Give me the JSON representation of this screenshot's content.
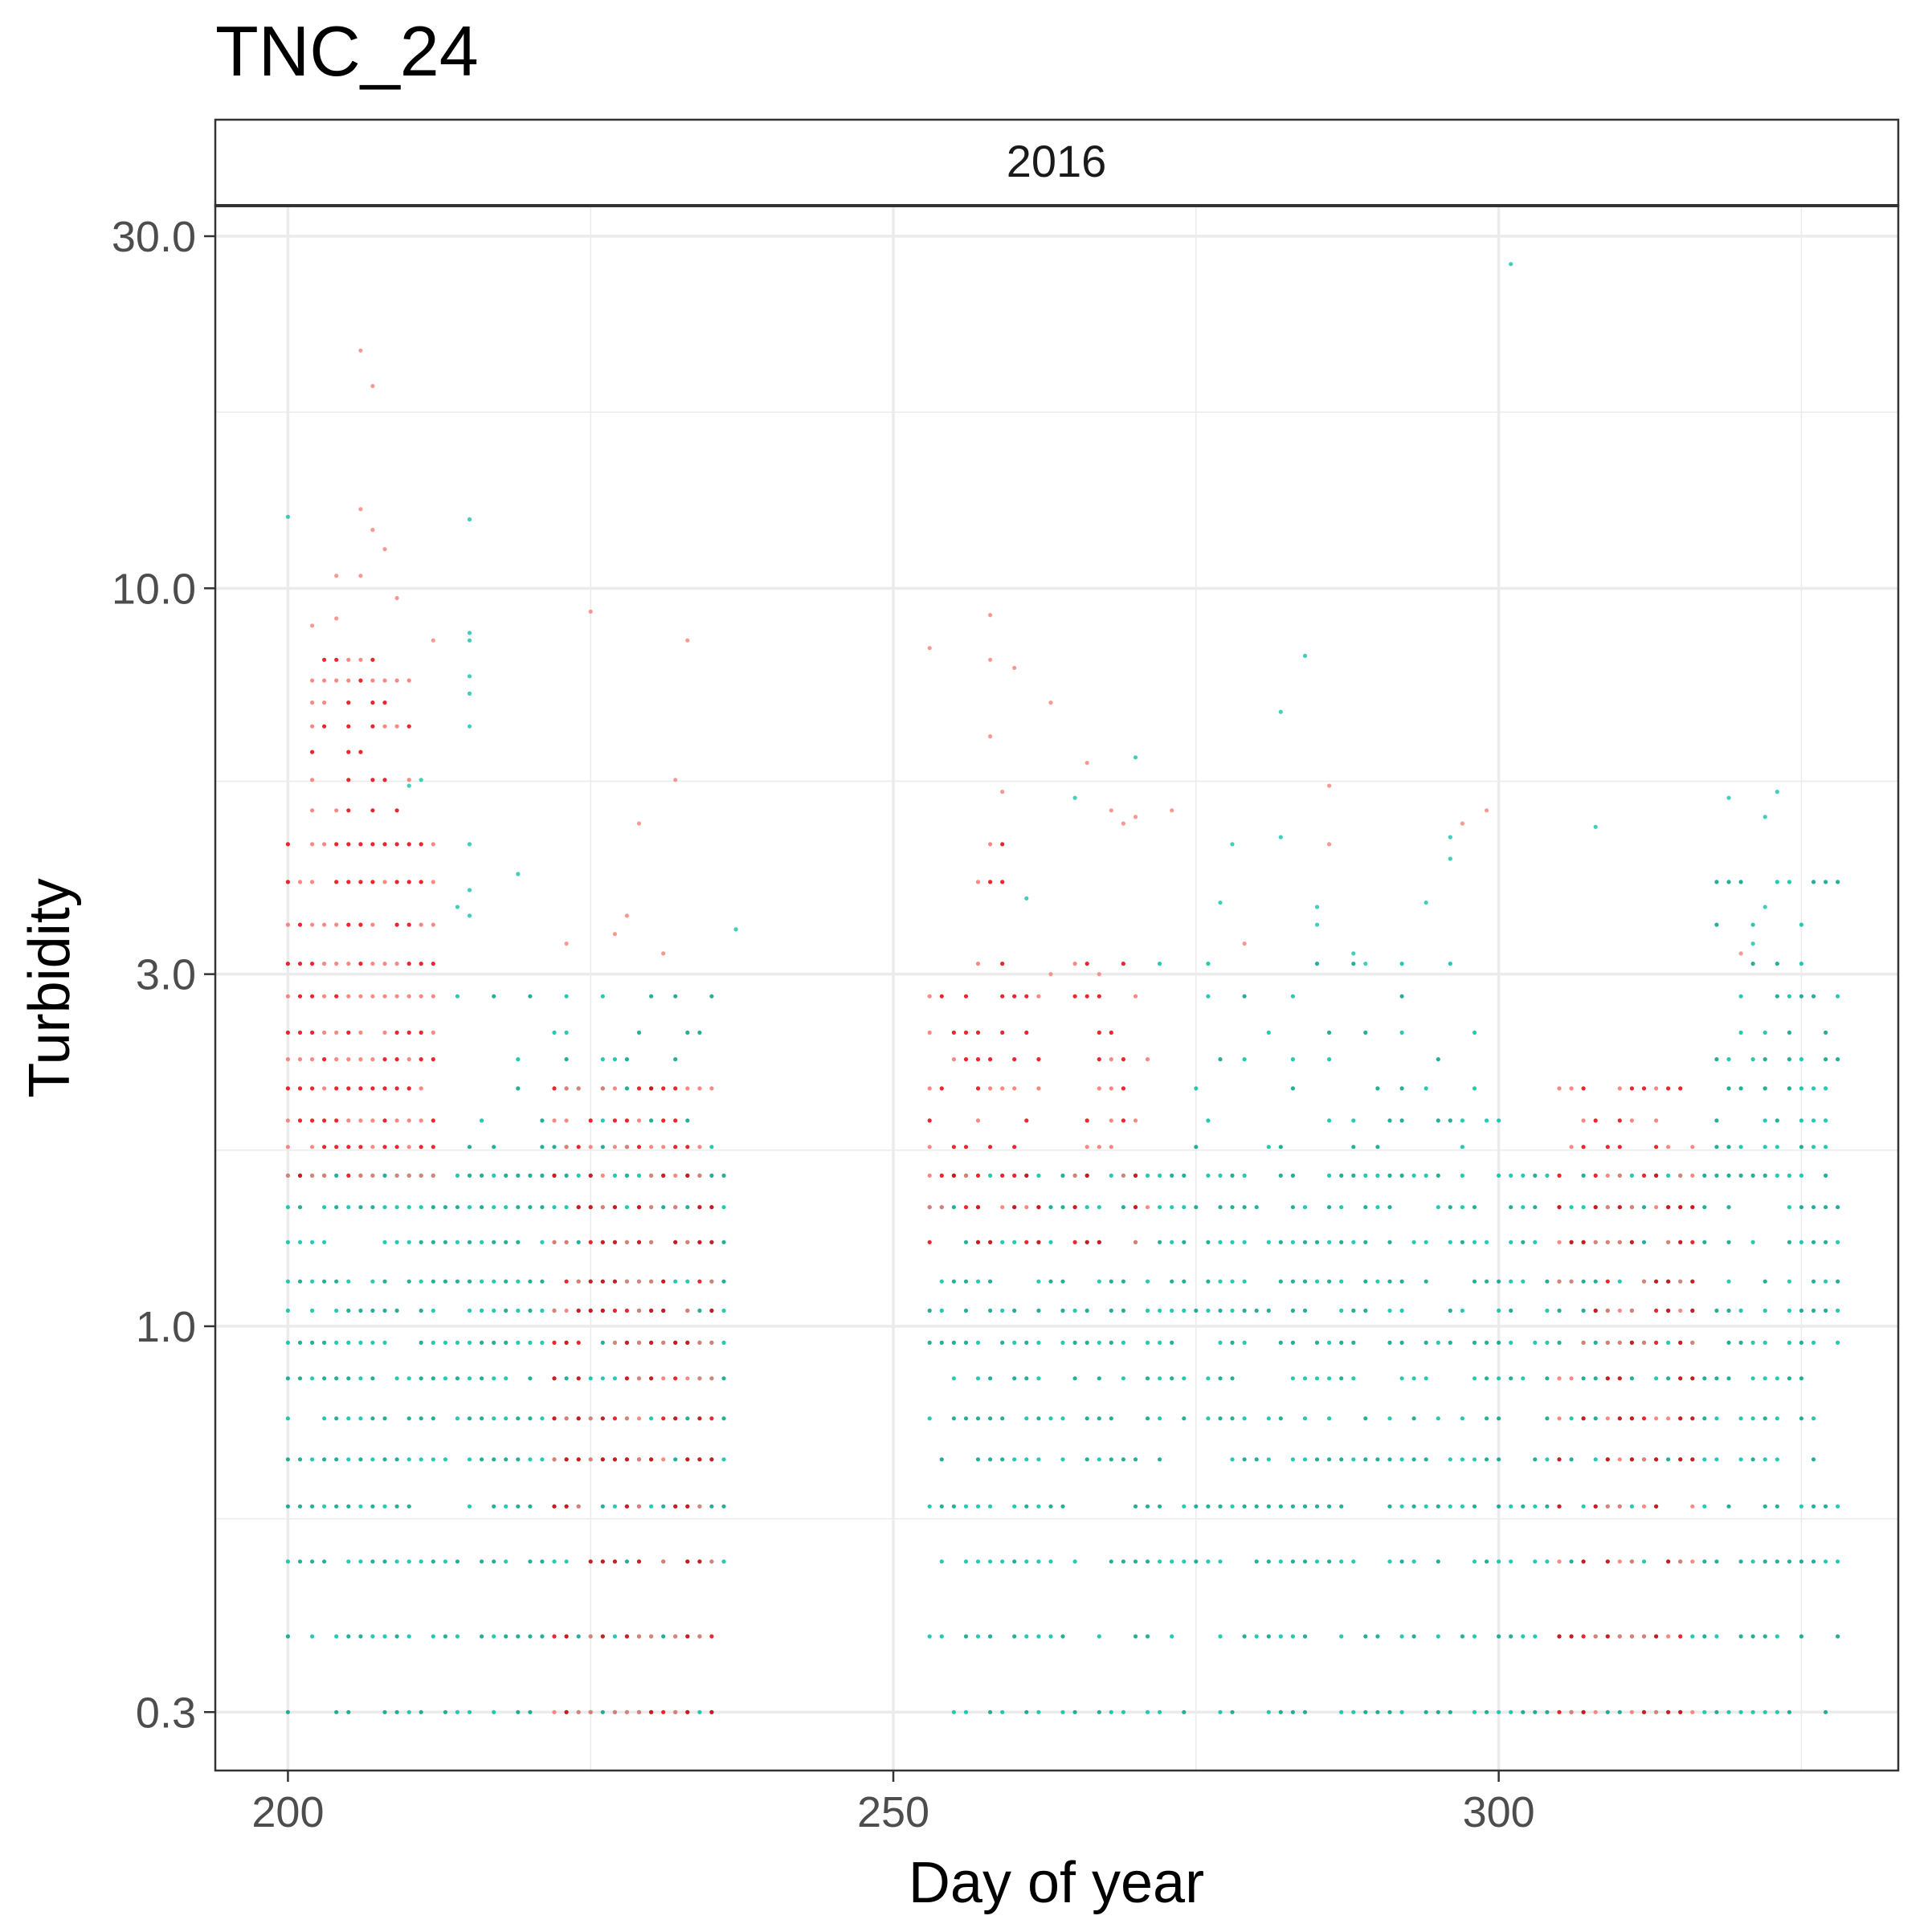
{
  "chart_data": {
    "type": "scatter",
    "title": "TNC_24",
    "facet_label": "2016",
    "xlabel": "Day of year",
    "ylabel": "Turbidity",
    "x_scale": "linear",
    "y_scale": "log10",
    "xlim": [
      194,
      333
    ],
    "ylim": [
      0.25,
      33
    ],
    "x_ticks": [
      {
        "value": 200,
        "label": "200"
      },
      {
        "value": 250,
        "label": "250"
      },
      {
        "value": 300,
        "label": "300"
      }
    ],
    "y_ticks": [
      {
        "value": 0.3,
        "label": "0.3"
      },
      {
        "value": 1.0,
        "label": "1.0"
      },
      {
        "value": 3.0,
        "label": "3.0"
      },
      {
        "value": 10.0,
        "label": "10.0"
      },
      {
        "value": 30.0,
        "label": "30.0"
      }
    ],
    "y_minor_gridlines": [
      0.5483,
      1.732,
      5.477,
      17.32
    ],
    "x_minor_gridlines": [
      225,
      275,
      325
    ],
    "grid": true,
    "legend": "none",
    "colors": {
      "red": "#F8766D",
      "teal": "#00BFA4",
      "dark_red": "#E8000B",
      "dark_teal": "#00A086"
    },
    "series": [
      {
        "color": "teal",
        "bands": [
          {
            "x": [
              200,
              236
            ],
            "levels": [
              0.3,
              0.38,
              0.48,
              0.57,
              0.66,
              0.75,
              0.85,
              0.95,
              1.05,
              1.15,
              1.3,
              1.45,
              1.6
            ],
            "density": 0.85
          },
          {
            "x": [
              253,
              328
            ],
            "levels": [
              0.3,
              0.38,
              0.48,
              0.57,
              0.66,
              0.75,
              0.85,
              0.95,
              1.05,
              1.15,
              1.3,
              1.45,
              1.6
            ],
            "density": 0.7
          },
          {
            "x": [
              214,
              236
            ],
            "levels": [
              1.75,
              1.9,
              2.1,
              2.3,
              2.5,
              2.8
            ],
            "density": 0.3
          },
          {
            "x": [
              318,
              328
            ],
            "levels": [
              1.75,
              1.9,
              2.1,
              2.3,
              2.5,
              2.8,
              3.1,
              3.5,
              4.0
            ],
            "density": 0.55
          },
          {
            "x": [
              272,
              300
            ],
            "levels": [
              1.75,
              1.9,
              2.1,
              2.3,
              2.5,
              2.8,
              3.1
            ],
            "density": 0.25
          }
        ],
        "points": [
          [
            200,
            12.5
          ],
          [
            215,
            12.4
          ],
          [
            215,
            8.7
          ],
          [
            215,
            8.5
          ],
          [
            215,
            7.6
          ],
          [
            215,
            7.2
          ],
          [
            215,
            6.5
          ],
          [
            210,
            5.4
          ],
          [
            211,
            5.5
          ],
          [
            215,
            4.5
          ],
          [
            219,
            4.1
          ],
          [
            215,
            3.9
          ],
          [
            214,
            3.7
          ],
          [
            215,
            3.6
          ],
          [
            237,
            3.45
          ],
          [
            301,
            27.5
          ],
          [
            284,
            8.1
          ],
          [
            282,
            6.8
          ],
          [
            270,
            5.9
          ],
          [
            265,
            5.2
          ],
          [
            261,
            3.8
          ],
          [
            278,
            4.5
          ],
          [
            282,
            4.6
          ],
          [
            285,
            3.7
          ],
          [
            277,
            3.75
          ],
          [
            294,
            3.75
          ],
          [
            296,
            4.3
          ],
          [
            285,
            3.5
          ],
          [
            288,
            3.2
          ],
          [
            289,
            3.1
          ],
          [
            308,
            4.75
          ],
          [
            319,
            5.2
          ],
          [
            322,
            4.9
          ],
          [
            323,
            5.3
          ],
          [
            322,
            3.7
          ],
          [
            321,
            3.3
          ],
          [
            296,
            4.6
          ]
        ]
      },
      {
        "color": "red",
        "bands": [
          {
            "x": [
              200,
              212
            ],
            "levels": [
              1.6,
              1.75,
              1.9,
              2.1,
              2.3,
              2.5,
              2.8,
              3.1,
              3.5,
              4.0,
              4.5
            ],
            "density": 0.95
          },
          {
            "x": [
              202,
              210
            ],
            "levels": [
              5.0,
              5.5,
              6.0,
              6.5,
              7.0,
              7.5,
              8.0
            ],
            "density": 0.55
          },
          {
            "x": [
              222,
              235
            ],
            "levels": [
              0.3,
              0.38,
              0.48,
              0.57,
              0.66,
              0.75,
              0.85,
              0.95,
              1.05,
              1.15,
              1.3,
              1.45,
              1.6,
              1.75,
              1.9,
              2.1
            ],
            "density": 0.75
          },
          {
            "x": [
              253,
              262
            ],
            "levels": [
              1.3,
              1.45,
              1.6,
              1.75,
              1.9,
              2.1,
              2.3,
              2.5,
              2.8
            ],
            "density": 0.6
          },
          {
            "x": [
              257,
              259
            ],
            "levels": [
              3.1,
              3.5,
              4.0,
              4.5
            ],
            "density": 0.8
          },
          {
            "x": [
              265,
              271
            ],
            "levels": [
              1.3,
              1.45,
              1.6,
              1.75,
              1.9,
              2.1,
              2.3,
              2.5,
              2.8,
              3.1
            ],
            "density": 0.55
          },
          {
            "x": [
              305,
              316
            ],
            "levels": [
              0.3,
              0.38,
              0.48,
              0.57,
              0.66,
              0.75,
              0.85,
              0.95,
              1.05,
              1.15,
              1.3,
              1.45,
              1.6,
              1.75,
              1.9,
              2.1
            ],
            "density": 0.65
          }
        ],
        "points": [
          [
            206,
            21.0
          ],
          [
            207,
            18.8
          ],
          [
            206,
            12.8
          ],
          [
            207,
            12.0
          ],
          [
            208,
            11.3
          ],
          [
            204,
            10.4
          ],
          [
            206,
            10.4
          ],
          [
            209,
            9.7
          ],
          [
            204,
            9.1
          ],
          [
            202,
            8.9
          ],
          [
            212,
            8.5
          ],
          [
            225,
            9.3
          ],
          [
            233,
            8.5
          ],
          [
            223,
            3.3
          ],
          [
            227,
            3.4
          ],
          [
            228,
            3.6
          ],
          [
            231,
            3.2
          ],
          [
            232,
            5.5
          ],
          [
            229,
            4.8
          ],
          [
            253,
            8.3
          ],
          [
            258,
            9.2
          ],
          [
            258,
            8.0
          ],
          [
            260,
            7.8
          ],
          [
            258,
            6.3
          ],
          [
            259,
            5.3
          ],
          [
            263,
            7.0
          ],
          [
            266,
            5.8
          ],
          [
            268,
            5.0
          ],
          [
            269,
            4.8
          ],
          [
            270,
            4.9
          ],
          [
            273,
            5.0
          ],
          [
            286,
            5.4
          ],
          [
            286,
            4.5
          ],
          [
            299,
            5.0
          ],
          [
            297,
            4.8
          ],
          [
            320,
            3.2
          ],
          [
            263,
            3.0
          ],
          [
            267,
            3.0
          ],
          [
            279,
            3.3
          ]
        ]
      }
    ]
  }
}
